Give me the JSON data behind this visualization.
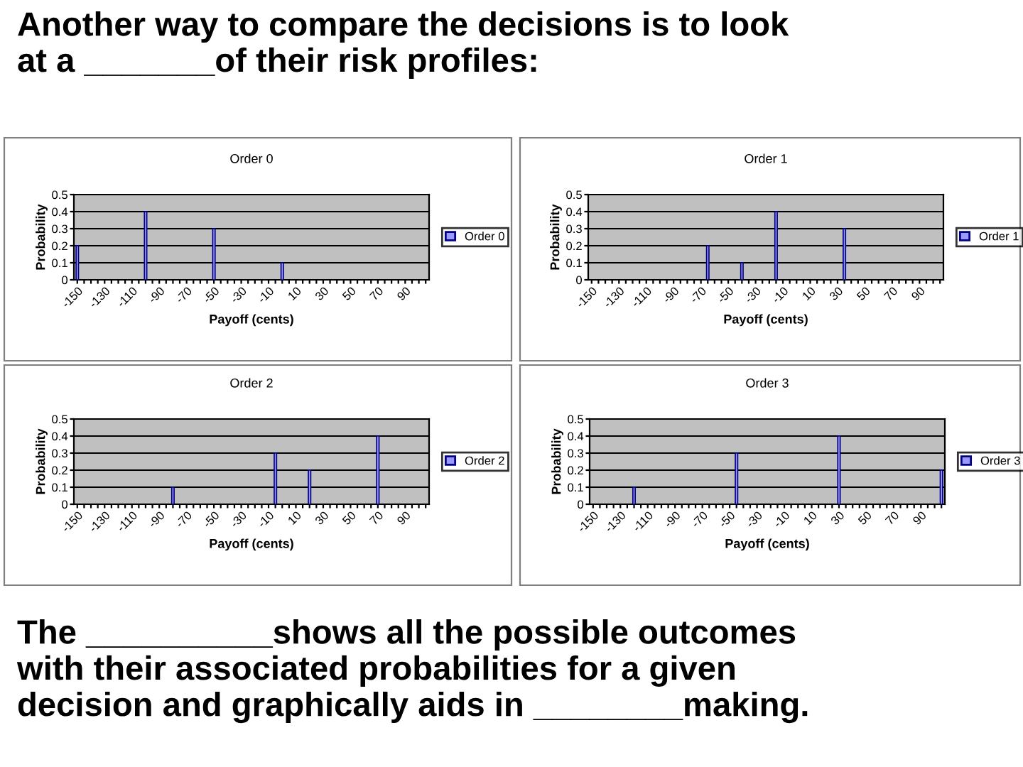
{
  "chart_data": [
    {
      "type": "bar",
      "title": "Order 0",
      "xlabel": "Payoff (cents)",
      "ylabel": "Probability",
      "annotations": [
        "Another way to compare the decisions is to look\nat a _______of their risk profiles:"
      ],
      "categories": [
        "-150",
        null,
        null,
        null,
        "-130",
        null,
        null,
        null,
        "-110",
        null,
        null,
        null,
        "-90",
        null,
        null,
        null,
        "-70",
        null,
        null,
        null,
        "-50",
        null,
        null,
        null,
        "-30",
        null,
        null,
        null,
        "-10",
        null,
        null,
        null,
        "10",
        null,
        null,
        null,
        "30",
        null,
        null,
        null,
        "50",
        null,
        null,
        null,
        "70",
        null,
        null,
        null,
        "90",
        null,
        null,
        null
      ],
      "series": [
        {
          "name": "Order 0",
          "color": "#9999ff",
          "values": [
            0.2,
            null,
            null,
            null,
            null,
            null,
            null,
            null,
            null,
            null,
            0.4,
            null,
            null,
            null,
            null,
            null,
            null,
            null,
            null,
            null,
            0.3,
            null,
            null,
            null,
            null,
            null,
            null,
            null,
            null,
            null,
            0.1,
            null,
            null,
            null,
            null,
            null,
            null,
            null,
            null,
            null,
            null,
            null,
            null,
            null,
            null,
            null,
            null,
            null,
            null,
            null,
            null,
            null
          ]
        }
      ],
      "ylim": [
        0,
        0.5
      ],
      "yticks": [
        0,
        0.1,
        0.2,
        0.3,
        0.4,
        0.5
      ],
      "grid": "y",
      "legend": "right"
    },
    {
      "type": "bar",
      "title": "Order 1",
      "xlabel": "Payoff (cents)",
      "ylabel": "Probability",
      "categories": [
        "-150",
        null,
        null,
        null,
        "-130",
        null,
        null,
        null,
        "-110",
        null,
        null,
        null,
        "-90",
        null,
        null,
        null,
        "-70",
        null,
        null,
        null,
        "-50",
        null,
        null,
        null,
        "-30",
        null,
        null,
        null,
        "-10",
        null,
        null,
        null,
        "10",
        null,
        null,
        null,
        "30",
        null,
        null,
        null,
        "50",
        null,
        null,
        null,
        "70",
        null,
        null,
        null,
        "90",
        null,
        null,
        null
      ],
      "series": [
        {
          "name": "Order 1",
          "color": "#9999ff",
          "values": [
            null,
            null,
            null,
            null,
            null,
            null,
            null,
            null,
            null,
            null,
            null,
            null,
            null,
            null,
            null,
            null,
            null,
            0.2,
            null,
            null,
            null,
            null,
            0.1,
            null,
            null,
            null,
            null,
            0.4,
            null,
            null,
            null,
            null,
            null,
            null,
            null,
            null,
            null,
            0.3,
            null,
            null,
            null,
            null,
            null,
            null,
            null,
            null,
            null,
            null,
            null,
            null,
            null,
            null
          ]
        }
      ],
      "ylim": [
        0,
        0.5
      ],
      "yticks": [
        0,
        0.1,
        0.2,
        0.3,
        0.4,
        0.5
      ],
      "grid": "y",
      "legend": "right"
    },
    {
      "type": "bar",
      "title": "Order 2",
      "xlabel": "Payoff (cents)",
      "ylabel": "Probability",
      "categories": [
        "-150",
        null,
        null,
        null,
        "-130",
        null,
        null,
        null,
        "-110",
        null,
        null,
        null,
        "-90",
        null,
        null,
        null,
        "-70",
        null,
        null,
        null,
        "-50",
        null,
        null,
        null,
        "-30",
        null,
        null,
        null,
        "-10",
        null,
        null,
        null,
        "10",
        null,
        null,
        null,
        "30",
        null,
        null,
        null,
        "50",
        null,
        null,
        null,
        "70",
        null,
        null,
        null,
        "90",
        null,
        null,
        null
      ],
      "series": [
        {
          "name": "Order 2",
          "color": "#9999ff",
          "values": [
            null,
            null,
            null,
            null,
            null,
            null,
            null,
            null,
            null,
            null,
            null,
            null,
            null,
            null,
            0.1,
            null,
            null,
            null,
            null,
            null,
            null,
            null,
            null,
            null,
            null,
            null,
            null,
            null,
            null,
            0.3,
            null,
            null,
            null,
            null,
            0.2,
            null,
            null,
            null,
            null,
            null,
            null,
            null,
            null,
            null,
            0.4,
            null,
            null,
            null,
            null,
            null,
            null,
            null
          ]
        }
      ],
      "ylim": [
        0,
        0.5
      ],
      "yticks": [
        0,
        0.1,
        0.2,
        0.3,
        0.4,
        0.5
      ],
      "grid": "y",
      "legend": "right"
    },
    {
      "type": "bar",
      "title": "Order 3",
      "xlabel": "Payoff (cents)",
      "ylabel": "Probability",
      "annotations": [
        "The __________shows all the possible outcomes\nwith their associated probabilities for a given\ndecision and graphically aids in ________making."
      ],
      "categories": [
        "-150",
        null,
        null,
        null,
        "-130",
        null,
        null,
        null,
        "-110",
        null,
        null,
        null,
        "-90",
        null,
        null,
        null,
        "-70",
        null,
        null,
        null,
        "-50",
        null,
        null,
        null,
        "-30",
        null,
        null,
        null,
        "-10",
        null,
        null,
        null,
        "10",
        null,
        null,
        null,
        "30",
        null,
        null,
        null,
        "50",
        null,
        null,
        null,
        "70",
        null,
        null,
        null,
        "90",
        null,
        null,
        null
      ],
      "series": [
        {
          "name": "Order 3",
          "color": "#9999ff",
          "values": [
            null,
            null,
            null,
            null,
            null,
            null,
            0.1,
            null,
            null,
            null,
            null,
            null,
            null,
            null,
            null,
            null,
            null,
            null,
            null,
            null,
            null,
            0.3,
            null,
            null,
            null,
            null,
            null,
            null,
            null,
            null,
            null,
            null,
            null,
            null,
            null,
            null,
            0.4,
            null,
            null,
            null,
            null,
            null,
            null,
            null,
            null,
            null,
            null,
            null,
            null,
            null,
            null,
            0.2
          ]
        }
      ],
      "ylim": [
        0,
        0.5
      ],
      "yticks": [
        0,
        0.1,
        0.2,
        0.3,
        0.4,
        0.5
      ],
      "grid": "y",
      "legend": "right"
    }
  ]
}
